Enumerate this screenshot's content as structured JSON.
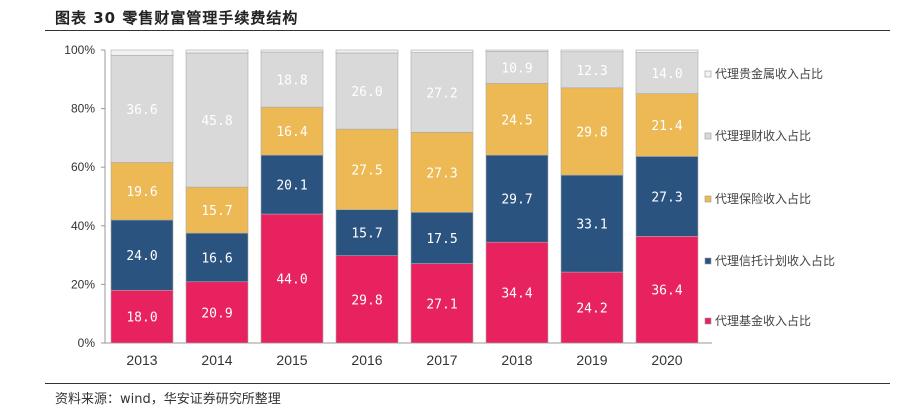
{
  "title": "图表 30 零售财富管理手续费结构",
  "source": "资料来源：wind，华安证券研究所整理",
  "chart_data": {
    "type": "bar",
    "stacked": true,
    "categories": [
      "2013",
      "2014",
      "2015",
      "2016",
      "2017",
      "2018",
      "2019",
      "2020"
    ],
    "ylim": [
      0,
      100
    ],
    "yticks": [
      "0%",
      "20%",
      "40%",
      "60%",
      "80%",
      "100%"
    ],
    "grid": false,
    "legend_placement": "right",
    "series": [
      {
        "name": "代理基金收入占比",
        "color": "#e8215f",
        "values": [
          18.0,
          20.9,
          44.0,
          29.8,
          27.1,
          34.4,
          24.2,
          36.4
        ],
        "labels": [
          "18.0",
          "20.9",
          "44.0",
          "29.8",
          "27.1",
          "34.4",
          "24.2",
          "36.4"
        ]
      },
      {
        "name": "代理信托计划收入占比",
        "color": "#2b5380",
        "values": [
          24.0,
          16.6,
          20.1,
          15.7,
          17.5,
          29.7,
          33.1,
          27.3
        ],
        "labels": [
          "24.0",
          "16.6",
          "20.1",
          "15.7",
          "17.5",
          "29.7",
          "33.1",
          "27.3"
        ]
      },
      {
        "name": "代理保险收入占比",
        "color": "#ecb955",
        "values": [
          19.6,
          15.7,
          16.4,
          27.5,
          27.3,
          24.5,
          29.8,
          21.4
        ],
        "labels": [
          "19.6",
          "15.7",
          "16.4",
          "27.5",
          "27.3",
          "24.5",
          "29.8",
          "21.4"
        ]
      },
      {
        "name": "代理理财收入占比",
        "color": "#d9d9d9",
        "values": [
          36.6,
          45.8,
          18.8,
          26.0,
          27.2,
          10.9,
          12.3,
          14.0
        ],
        "labels": [
          "36.6",
          "45.8",
          "18.8",
          "26.0",
          "27.2",
          "10.9",
          "12.3",
          "14.0"
        ]
      },
      {
        "name": "代理贵金属收入占比",
        "color": "#f2f2f2",
        "values": [
          1.8,
          1.0,
          0.7,
          1.0,
          0.9,
          0.5,
          0.6,
          0.9
        ],
        "labels": []
      }
    ]
  }
}
